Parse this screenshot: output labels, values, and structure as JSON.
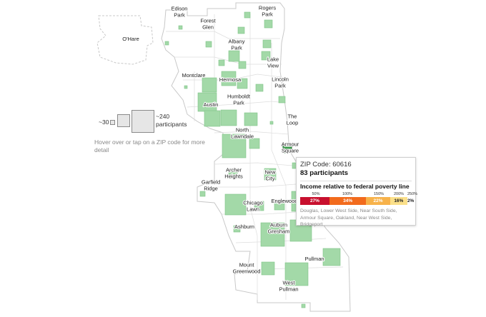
{
  "neighborhoods": [
    "Edison Park",
    "Rogers Park",
    "Forest Glen",
    "O'Hare",
    "Albany Park",
    "Lake View",
    "Montclare",
    "Hermosa",
    "Lincoln Park",
    "Humboldt Park",
    "Austin",
    "The Loop",
    "North Lawndale",
    "Armour Square",
    "Archer Heights",
    "New City",
    "Garfield Ridge",
    "Chicago Lawn",
    "Englewood",
    "Ashburn",
    "Auburn Gresham",
    "Pullman",
    "Mount Greenwood",
    "West Pullman"
  ],
  "legend": {
    "small_label": "~30",
    "large_label": "~240 participants"
  },
  "hint": "Hover over or tap on a ZIP code for more detail",
  "tooltip": {
    "zip": "ZIP Code: 60616",
    "participants": "83 participants",
    "title": "Income relative to federal poverty line",
    "scale_ticks": [
      "50%",
      "100%",
      "150%",
      "200%",
      "250%"
    ],
    "segments": [
      {
        "label": "27%",
        "share": 27,
        "color": "#c8102e"
      },
      {
        "label": "34%",
        "share": 34,
        "color": "#f26b1d"
      },
      {
        "label": "22%",
        "share": 22,
        "color": "#f7b24a"
      },
      {
        "label": "16%",
        "share": 16,
        "color": "#fbe08a"
      },
      {
        "label": "2%",
        "share": 2,
        "color": "#ffffff"
      }
    ],
    "neighborhoods": "Douglas, Lower West Side, Near South Side, Armour Square, Oakland, Near West Side, Bridgeport"
  },
  "colors": {
    "zip_square": "#a3d9a8",
    "zip_square_active": "#3b9a4b",
    "outline": "#c8c8c8"
  }
}
